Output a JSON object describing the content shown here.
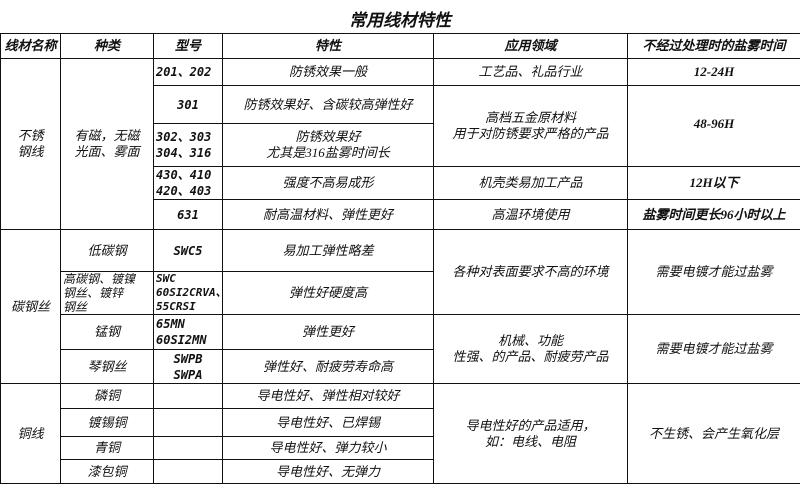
{
  "title": "常用线材特性",
  "headers": [
    "线材名称",
    "种类",
    "型号",
    "特性",
    "应用领域",
    "不经过处理时的盐雾时间"
  ],
  "stainless": {
    "name": "不锈\n钢线",
    "kind": "有磁，无磁\n光面、雾面",
    "rows": [
      {
        "model": "201、202",
        "feature": "防锈效果一般",
        "app": "工艺品、礼品行业",
        "salt": "12-24H"
      },
      {
        "model": "301",
        "feature": "防锈效果好、含碳较高弹性好",
        "app": "高档五金原材料\n用于对防锈要求严格的产品",
        "salt": "48-96H"
      },
      {
        "model": "302、303\n304、316",
        "feature": "防锈效果好\n尤其是316盐雾时间长"
      },
      {
        "model": "430、410\n420、403",
        "feature": "强度不高易成形",
        "app": "机壳类易加工产品",
        "salt": "12H以下"
      },
      {
        "model": "631",
        "feature": "耐高温材料、弹性更好",
        "app": "高温环境使用",
        "salt": "盐雾时间更长96小时以上"
      }
    ]
  },
  "carbon": {
    "name": "碳钢丝",
    "rows": [
      {
        "kind": "低碳钢",
        "model": "SWC5",
        "feature": "易加工弹性略差",
        "app": "各种对表面要求不高的环境",
        "salt": "需要电镀才能过盐雾"
      },
      {
        "kind": "高碳钢、镀镍\n钢丝、镀锌\n钢丝",
        "model": "SWC\n60SI2CRVA、\n55CRSI",
        "feature": "弹性好硬度高"
      },
      {
        "kind": "锰钢",
        "model": "65MN\n60SI2MN",
        "feature": "弹性更好",
        "app": "机械、功能\n性强、的产品、耐疲劳产品",
        "salt": "需要电镀才能过盐雾"
      },
      {
        "kind": "琴钢丝",
        "model": "SWPB\nSWPA",
        "feature": "弹性好、耐疲劳寿命高"
      }
    ]
  },
  "copper": {
    "name": "铜线",
    "app": "导电性好的产品适用，\n如：电线、电阻",
    "salt": "不生锈、会产生氧化层",
    "rows": [
      {
        "kind": "磷铜",
        "feature": "导电性好、弹性相对较好"
      },
      {
        "kind": "镀锡铜",
        "feature": "导电性好、已焊锡"
      },
      {
        "kind": "青铜",
        "feature": "导电性好、弹力较小"
      },
      {
        "kind": "漆包铜",
        "feature": "导电性好、无弹力"
      }
    ]
  }
}
